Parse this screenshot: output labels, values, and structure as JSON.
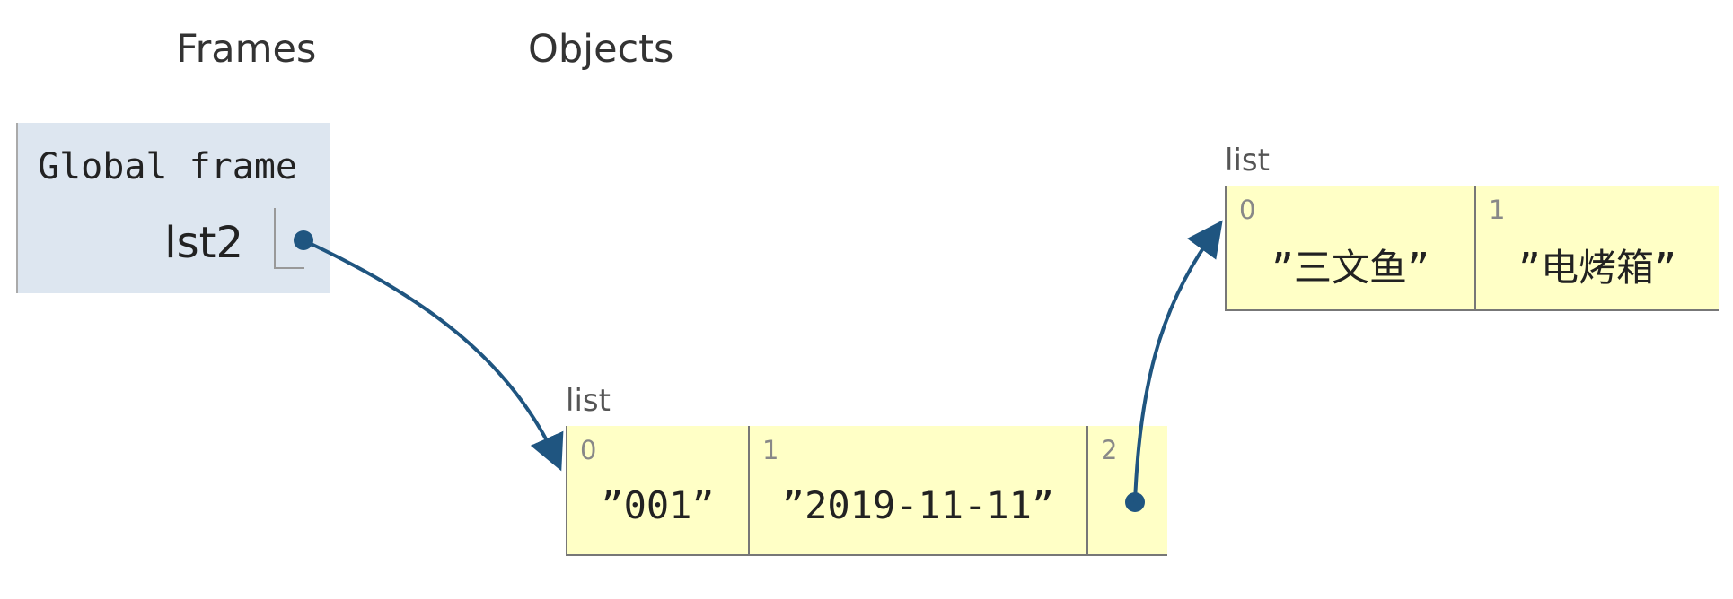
{
  "headings": {
    "frames": "Frames",
    "objects": "Objects"
  },
  "global_frame": {
    "title": "Global frame",
    "variables": [
      {
        "name": "lst2"
      }
    ]
  },
  "objects": [
    {
      "type_label": "list",
      "items": [
        {
          "index": "0",
          "value": "”001”"
        },
        {
          "index": "1",
          "value": "”2019-11-11”"
        },
        {
          "index": "2",
          "value": ""
        }
      ]
    },
    {
      "type_label": "list",
      "items": [
        {
          "index": "0",
          "value": "”三文鱼”"
        },
        {
          "index": "1",
          "value": "”电烤箱”"
        }
      ]
    }
  ],
  "colors": {
    "frame_bg": "#dde6f0",
    "object_bg": "#ffffc6",
    "pointer": "#1f5580"
  }
}
